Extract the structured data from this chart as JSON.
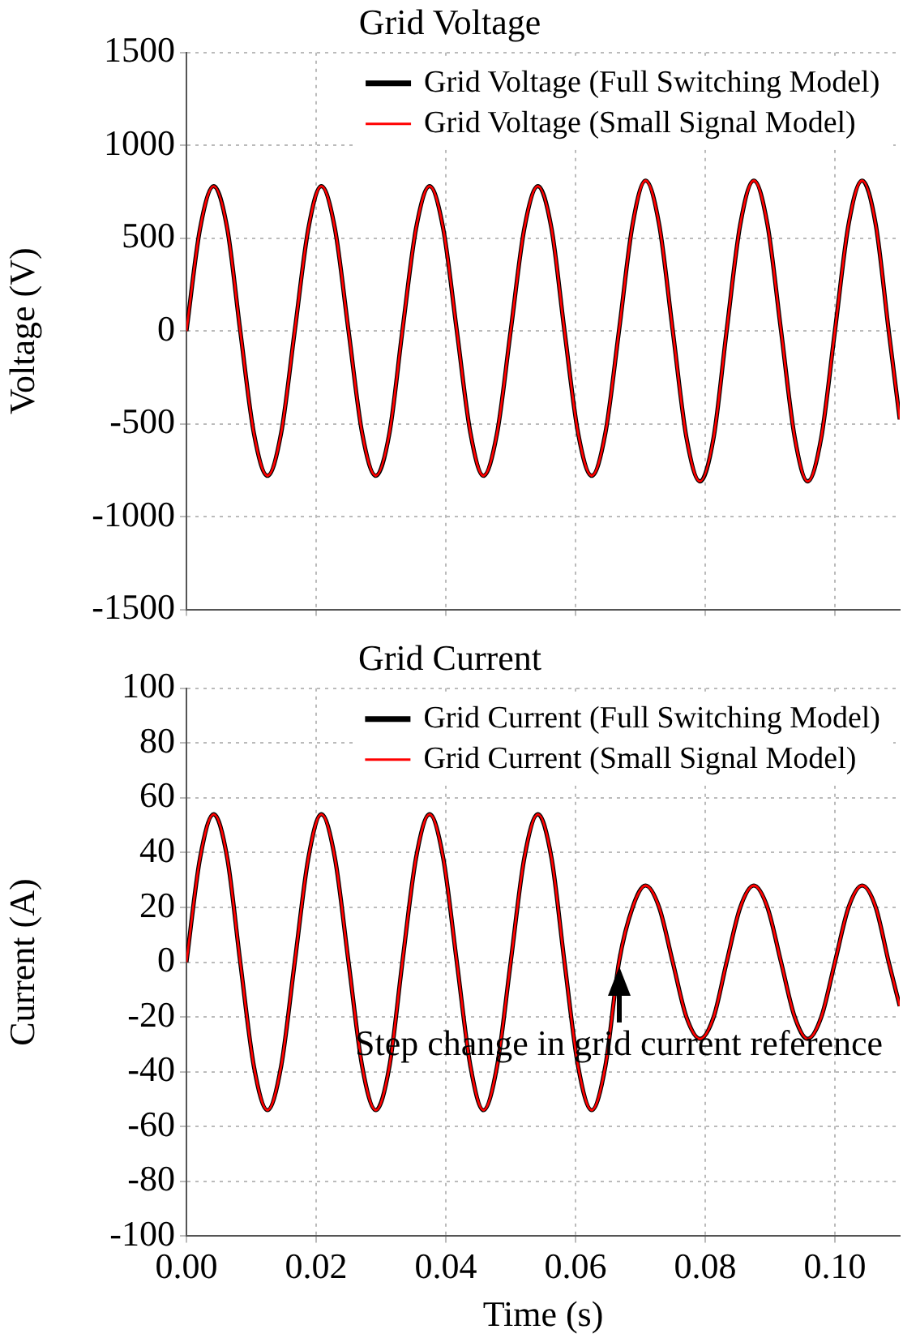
{
  "chart_data": [
    {
      "type": "line",
      "title": "Grid Voltage",
      "ylabel": "Voltage (V)",
      "x": [
        0,
        0.0021,
        0.0042,
        0.0063,
        0.0083,
        0.0104,
        0.0125,
        0.0146,
        0.0167,
        0.0188,
        0.0208,
        0.0229,
        0.025,
        0.0271,
        0.0292,
        0.0313,
        0.0333,
        0.0354,
        0.0375,
        0.0396,
        0.0417,
        0.0438,
        0.0458,
        0.0479,
        0.05,
        0.0521,
        0.0542,
        0.0563,
        0.0583,
        0.0604,
        0.0625,
        0.0646,
        0.0667,
        0.0688,
        0.0708,
        0.0729,
        0.075,
        0.0771,
        0.0792,
        0.0813,
        0.0833,
        0.0854,
        0.0875,
        0.0896,
        0.0917,
        0.0938,
        0.0958,
        0.0979,
        0.1,
        0.1021,
        0.1042,
        0.1063,
        0.1083,
        0.11
      ],
      "series": [
        {
          "name": "Grid Voltage (Full Switching Model)",
          "color": "#000000",
          "values": [
            0,
            551,
            780,
            551,
            0,
            -551,
            -780,
            -551,
            0,
            551,
            780,
            551,
            0,
            -551,
            -780,
            -551,
            0,
            551,
            780,
            551,
            0,
            -551,
            -780,
            -551,
            0,
            551,
            780,
            551,
            0,
            -551,
            -780,
            -551,
            0,
            573,
            810,
            573,
            0,
            -573,
            -810,
            -573,
            0,
            573,
            810,
            573,
            0,
            -573,
            -810,
            -573,
            0,
            573,
            810,
            573,
            0,
            -476
          ]
        },
        {
          "name": "Grid Voltage (Small Signal Model)",
          "color": "#ff0000",
          "values": [
            0,
            551,
            780,
            551,
            0,
            -551,
            -780,
            -551,
            0,
            551,
            780,
            551,
            0,
            -551,
            -780,
            -551,
            0,
            551,
            780,
            551,
            0,
            -551,
            -780,
            -551,
            0,
            551,
            780,
            551,
            0,
            -551,
            -780,
            -551,
            0,
            573,
            810,
            573,
            0,
            -573,
            -810,
            -573,
            0,
            573,
            810,
            573,
            0,
            -573,
            -810,
            -573,
            0,
            573,
            810,
            573,
            0,
            -476
          ]
        }
      ],
      "xlim": [
        0,
        0.11
      ],
      "xticks": [
        0,
        0.02,
        0.04,
        0.06,
        0.08,
        0.1
      ],
      "ylim": [
        -1500,
        1500
      ],
      "yticks": [
        -1500,
        -1000,
        -500,
        0,
        500,
        1000,
        1500
      ],
      "grid": true,
      "legend": "top right",
      "tick_labels": "y",
      "marker": "none"
    },
    {
      "type": "line",
      "title": "Grid Current",
      "xlabel": "Time (s)",
      "ylabel": "Current (A)",
      "x": [
        0,
        0.0021,
        0.0042,
        0.0063,
        0.0083,
        0.0104,
        0.0125,
        0.0146,
        0.0167,
        0.0188,
        0.0208,
        0.0229,
        0.025,
        0.0271,
        0.0292,
        0.0313,
        0.0333,
        0.0354,
        0.0375,
        0.0396,
        0.0417,
        0.0438,
        0.0458,
        0.0479,
        0.05,
        0.0521,
        0.0542,
        0.0563,
        0.0583,
        0.0604,
        0.0625,
        0.0646,
        0.0667,
        0.0688,
        0.0708,
        0.0729,
        0.075,
        0.0771,
        0.0792,
        0.0813,
        0.0833,
        0.0854,
        0.0875,
        0.0896,
        0.0917,
        0.0938,
        0.0958,
        0.0979,
        0.1,
        0.1021,
        0.1042,
        0.1063,
        0.1083,
        0.11
      ],
      "series": [
        {
          "name": "Grid Current (Full Switching Model)",
          "color": "#000000",
          "values": [
            0,
            38,
            54,
            38,
            0,
            -38,
            -54,
            -38,
            0,
            38,
            54,
            38,
            0,
            -38,
            -54,
            -38,
            0,
            38,
            54,
            38,
            0,
            -38,
            -54,
            -38,
            0,
            38,
            54,
            38,
            0,
            -38,
            -54,
            -38,
            0,
            20,
            28,
            20,
            0,
            -20,
            -28,
            -20,
            0,
            20,
            28,
            20,
            0,
            -20,
            -28,
            -20,
            0,
            20,
            28,
            20,
            0,
            -16
          ]
        },
        {
          "name": "Grid Current (Small Signal Model)",
          "color": "#ff0000",
          "values": [
            0,
            38,
            54,
            38,
            0,
            -38,
            -54,
            -38,
            0,
            38,
            54,
            38,
            0,
            -38,
            -54,
            -38,
            0,
            38,
            54,
            38,
            0,
            -38,
            -54,
            -38,
            0,
            38,
            54,
            38,
            0,
            -38,
            -54,
            -38,
            0,
            20,
            28,
            20,
            0,
            -20,
            -28,
            -20,
            0,
            20,
            28,
            20,
            0,
            -20,
            -28,
            -20,
            0,
            20,
            28,
            20,
            0,
            -16
          ]
        }
      ],
      "xlim": [
        0,
        0.11
      ],
      "xticks": [
        {
          "value": 0,
          "label": "0.00"
        },
        {
          "value": 0.02,
          "label": "0.02"
        },
        {
          "value": 0.04,
          "label": "0.04"
        },
        {
          "value": 0.06,
          "label": "0.06"
        },
        {
          "value": 0.08,
          "label": "0.08"
        },
        {
          "value": 0.1,
          "label": "0.10"
        }
      ],
      "ylim": [
        -100,
        100
      ],
      "yticks": [
        -100,
        -80,
        -60,
        -40,
        -20,
        0,
        20,
        40,
        60,
        80,
        100
      ],
      "grid": true,
      "legend": "top right",
      "marker": "none",
      "annotations": [
        {
          "text": "Step change in grid current reference",
          "x": 0.0667,
          "y": 0
        }
      ]
    }
  ]
}
